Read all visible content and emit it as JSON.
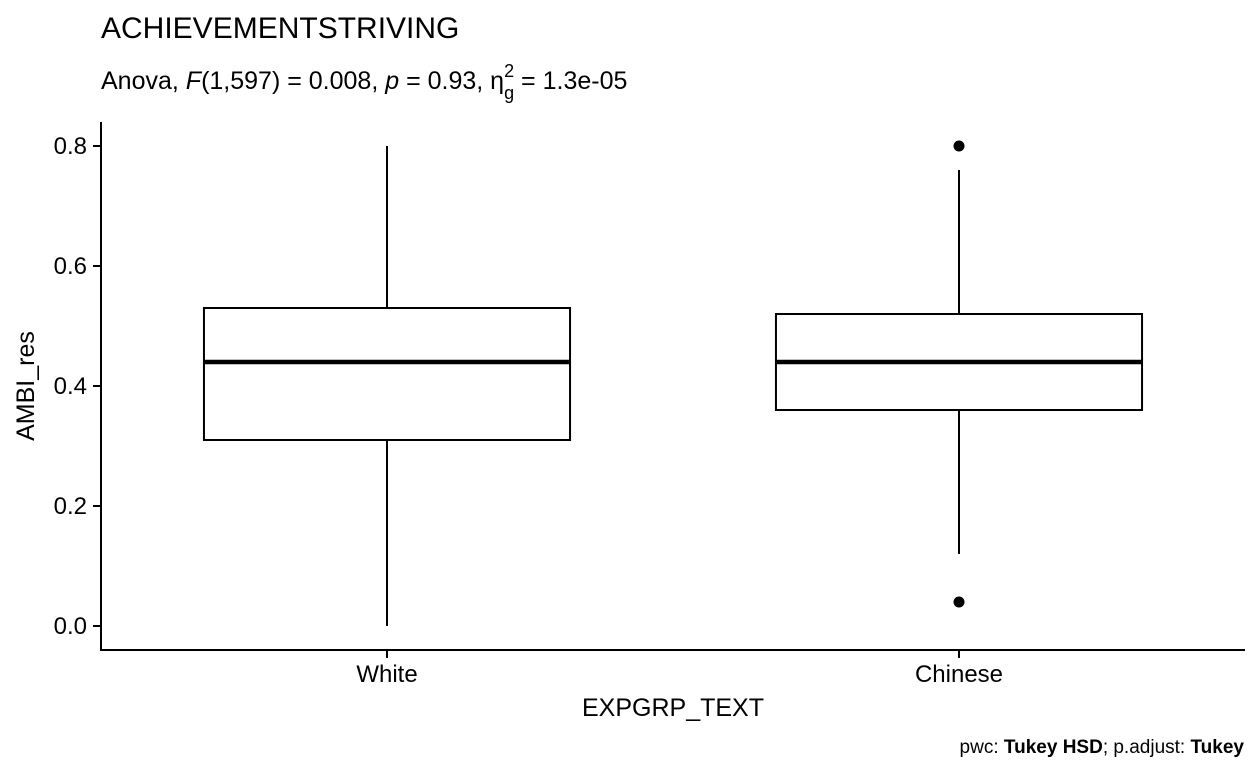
{
  "chart_data": {
    "type": "boxplot",
    "title": "ACHIEVEMENTSTRIVING",
    "subtitle": {
      "prefix": "Anova, ",
      "f_symbol": "F",
      "f_df": "(1,597) = 0.008, ",
      "p_symbol": "p",
      "p_value": " = 0.93, ",
      "eta_symbol": "η",
      "eta_sub": "g",
      "eta_sup": "2",
      "eta_value": " = 1.3e-05"
    },
    "xlabel": "EXPGRP_TEXT",
    "ylabel": "AMBI_res",
    "ylim": [
      -0.04,
      0.84
    ],
    "yticks": [
      0.0,
      0.2,
      0.4,
      0.6,
      0.8
    ],
    "ytick_labels": [
      "0.0",
      "0.2",
      "0.4",
      "0.6",
      "0.8"
    ],
    "categories": [
      "White",
      "Chinese"
    ],
    "boxes": [
      {
        "category": "White",
        "whisker_low": 0.0,
        "q1": 0.31,
        "median": 0.44,
        "q3": 0.53,
        "whisker_high": 0.8,
        "outliers": []
      },
      {
        "category": "Chinese",
        "whisker_low": 0.12,
        "q1": 0.36,
        "median": 0.44,
        "q3": 0.52,
        "whisker_high": 0.76,
        "outliers": [
          0.8,
          0.04
        ]
      }
    ],
    "grid": false,
    "caption": {
      "pwc_label": "pwc: ",
      "pwc_value": "Tukey HSD",
      "adjust_label": "; p.adjust: ",
      "adjust_value": "Tukey"
    }
  }
}
